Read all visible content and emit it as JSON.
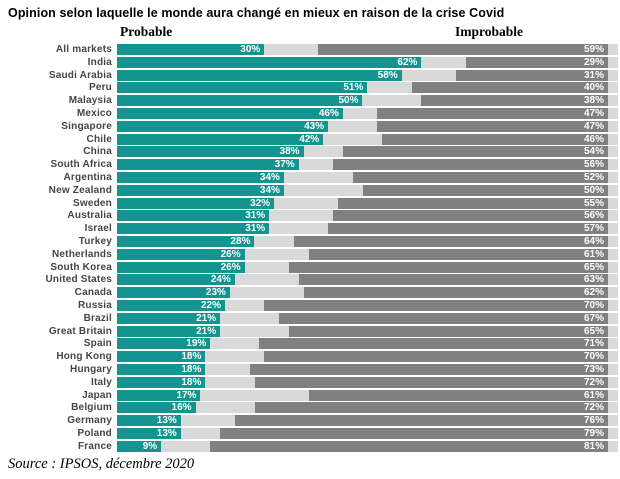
{
  "title": "Opinion selon laquelle le monde aura changé en mieux en raison de la crise Covid",
  "headers": {
    "left": "Probable",
    "right": "Improbable"
  },
  "source": "Source : IPSOS, décembre 2020",
  "colors": {
    "probable": "#149490",
    "improbable": "#808080",
    "track": "#D9D9D9",
    "bar_label_text": "#FFFFFF"
  },
  "chart_data": {
    "type": "bar",
    "orientation": "horizontal",
    "title": "Opinion selon laquelle le monde aura changé en mieux en raison de la crise Covid",
    "legend_position": "top",
    "unit": "%",
    "value_labels": true,
    "xlim": [
      0,
      100
    ],
    "categories": [
      "All markets",
      "India",
      "Saudi Arabia",
      "Peru",
      "Malaysia",
      "Mexico",
      "Singapore",
      "Chile",
      "China",
      "South Africa",
      "Argentina",
      "New Zealand",
      "Sweden",
      "Australia",
      "Israel",
      "Turkey",
      "Netherlands",
      "South Korea",
      "United States",
      "Canada",
      "Russia",
      "Brazil",
      "Great Britain",
      "Spain",
      "Hong Kong",
      "Hungary",
      "Italy",
      "Japan",
      "Belgium",
      "Germany",
      "Poland",
      "France"
    ],
    "series": [
      {
        "name": "Probable",
        "color": "#149490",
        "values": [
          30,
          62,
          58,
          51,
          50,
          46,
          43,
          42,
          38,
          37,
          34,
          34,
          32,
          31,
          31,
          28,
          26,
          26,
          24,
          23,
          22,
          21,
          21,
          19,
          18,
          18,
          18,
          17,
          16,
          13,
          13,
          9
        ]
      },
      {
        "name": "Improbable",
        "color": "#808080",
        "values": [
          59,
          29,
          31,
          40,
          38,
          47,
          47,
          46,
          54,
          56,
          52,
          50,
          55,
          56,
          57,
          64,
          61,
          65,
          63,
          62,
          70,
          67,
          65,
          71,
          70,
          73,
          72,
          61,
          72,
          76,
          79,
          81
        ]
      }
    ]
  }
}
